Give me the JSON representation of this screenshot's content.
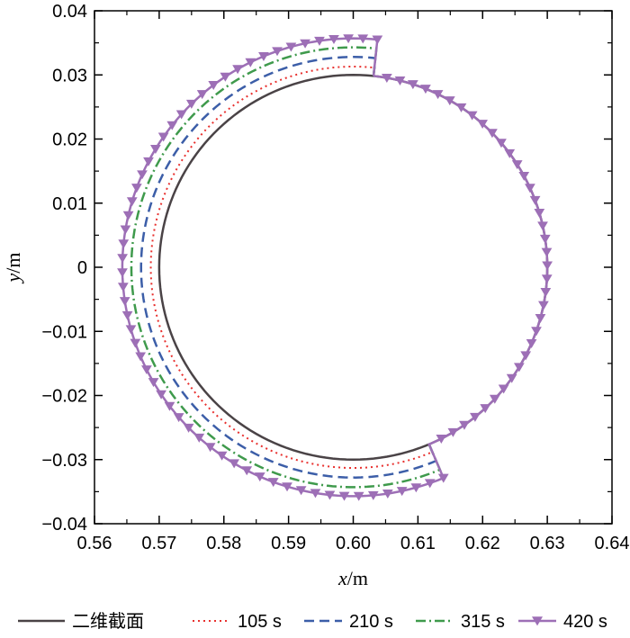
{
  "chart_data": {
    "type": "line",
    "title": "",
    "xlabel": {
      "var": "x",
      "unit": "/m"
    },
    "ylabel": {
      "var": "y",
      "unit": "/m"
    },
    "xlim": [
      0.56,
      0.64
    ],
    "ylim": [
      -0.04,
      0.04
    ],
    "xticks": [
      "0.56",
      "0.57",
      "0.58",
      "0.59",
      "0.60",
      "0.61",
      "0.62",
      "0.63",
      "0.64"
    ],
    "yticks": [
      "0.04",
      "0.03",
      "0.02",
      "0.01",
      "0",
      "−0.01",
      "−0.02",
      "−0.03",
      "−0.04"
    ],
    "grid": false,
    "legend_position": "bottom",
    "center": [
      0.6,
      0.0
    ],
    "inner_radius": 0.03,
    "arc_start_deg": 84,
    "arc_end_deg": 293,
    "series": [
      {
        "name": "二维截面",
        "style": "solid",
        "marker": "none",
        "color": "#4a4346",
        "radius": 0.03
      },
      {
        "name": "105 s",
        "style": "dotted",
        "marker": "none",
        "color": "#e8302e",
        "radius": 0.0313
      },
      {
        "name": "210 s",
        "style": "dashed",
        "marker": "none",
        "color": "#3c5ea8",
        "radius": 0.0328
      },
      {
        "name": "315 s",
        "style": "dashdot",
        "marker": "none",
        "color": "#3f9a4c",
        "radius": 0.0343
      },
      {
        "name": "420 s",
        "style": "solid",
        "marker": "triangle-down",
        "color": "#9d6fb6",
        "radius": 0.0357,
        "closed_circle": true
      }
    ]
  }
}
